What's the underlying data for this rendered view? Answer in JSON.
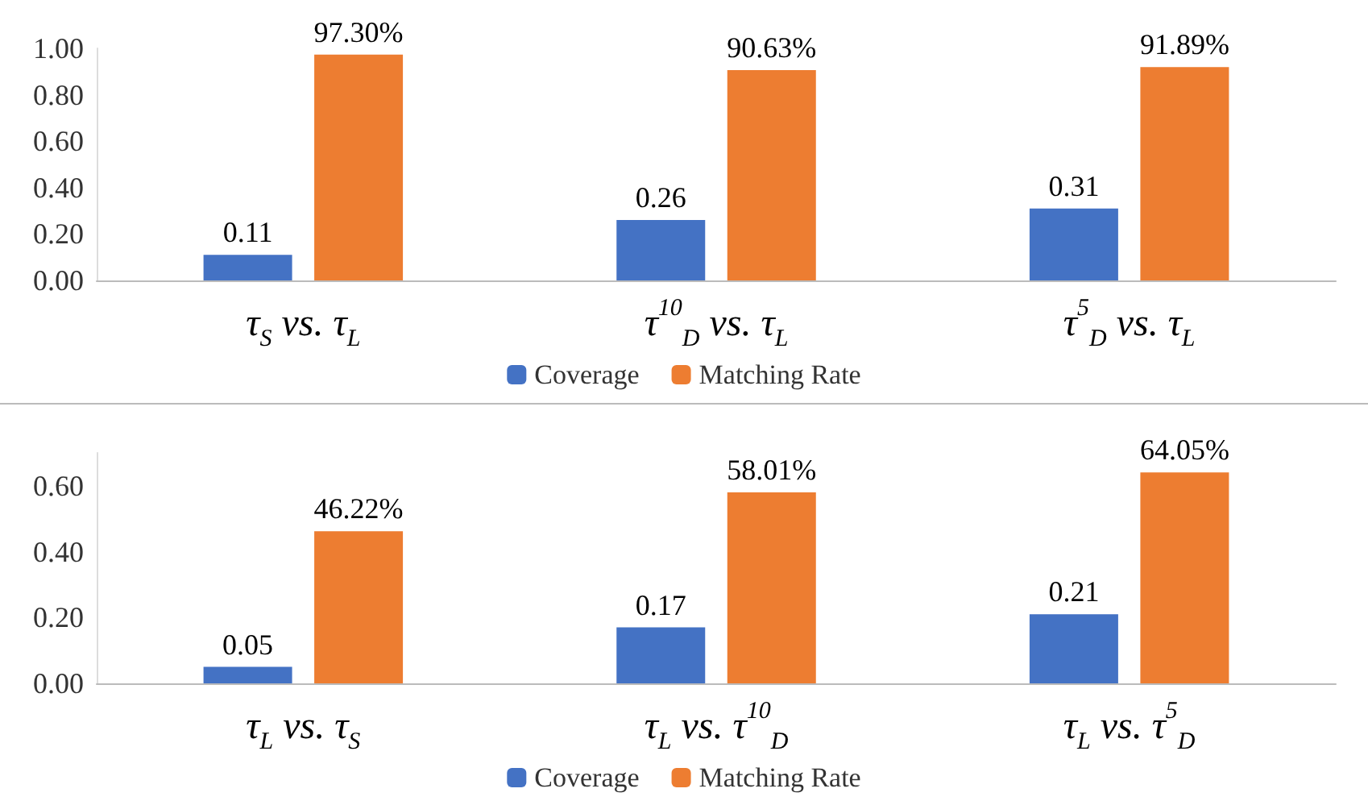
{
  "chart_data": [
    {
      "type": "bar",
      "categories": [
        "τ$_{S}$ vs. τ$_{L}$",
        "τ$^{10}$$_{D}$ vs. τ$_{L}$",
        "τ$^{5}$$_{D}$ vs. τ$_{L}$"
      ],
      "series": [
        {
          "name": "Coverage",
          "color": "#4472c4",
          "values": [
            0.11,
            0.26,
            0.31
          ],
          "value_labels": [
            "0.11",
            "0.26",
            "0.31"
          ]
        },
        {
          "name": "Matching Rate",
          "color": "#ed7d31",
          "values": [
            0.973,
            0.9063,
            0.9189
          ],
          "value_labels": [
            "97.30%",
            "90.63%",
            "91.89%"
          ]
        }
      ],
      "ylim": [
        0,
        1
      ],
      "yticks": [
        {
          "value": 0,
          "label": "0.00"
        },
        {
          "value": 0.2,
          "label": "0.20"
        },
        {
          "value": 0.4,
          "label": "0.40"
        },
        {
          "value": 0.6,
          "label": "0.60"
        },
        {
          "value": 0.8,
          "label": "0.80"
        },
        {
          "value": 1,
          "label": "1.00"
        }
      ],
      "grid": false,
      "legend": "bottom"
    },
    {
      "type": "bar",
      "categories": [
        "τ$_{L}$ vs. τ$_{S}$",
        "τ$_{L}$ vs. τ$^{10}$$_{D}$",
        "τ$_{L}$ vs. τ$^{5}$$_{D}$"
      ],
      "series": [
        {
          "name": "Coverage",
          "color": "#4472c4",
          "values": [
            0.05,
            0.17,
            0.21
          ],
          "value_labels": [
            "0.05",
            "0.17",
            "0.21"
          ]
        },
        {
          "name": "Matching Rate",
          "color": "#ed7d31",
          "values": [
            0.4622,
            0.5801,
            0.6405
          ],
          "value_labels": [
            "46.22%",
            "58.01%",
            "64.05%"
          ]
        }
      ],
      "ylim": [
        0,
        0.7
      ],
      "yticks": [
        {
          "value": 0,
          "label": "0.00"
        },
        {
          "value": 0.2,
          "label": "0.20"
        },
        {
          "value": 0.4,
          "label": "0.40"
        },
        {
          "value": 0.6,
          "label": "0.60"
        }
      ],
      "grid": false,
      "legend": "bottom"
    }
  ]
}
